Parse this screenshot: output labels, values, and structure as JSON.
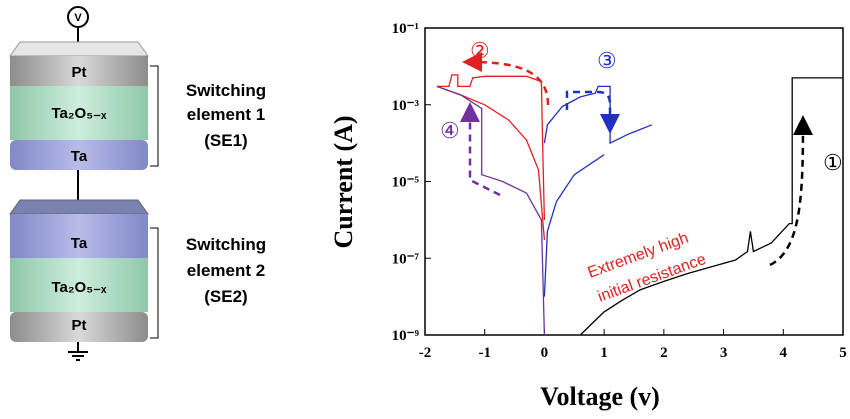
{
  "diagram": {
    "source": "V",
    "element1": {
      "layers": [
        "Pt",
        "Ta₂O₅₋ₓ",
        "Ta"
      ],
      "label": [
        "Switching",
        "element 1",
        "(SE1)"
      ]
    },
    "element2": {
      "layers": [
        "Ta",
        "Ta₂O₅₋ₓ",
        "Pt"
      ],
      "label": [
        "Switching",
        "element 2",
        "(SE2)"
      ]
    }
  },
  "chart_data": {
    "type": "line",
    "log_y": true,
    "xlabel": "Voltage (v)",
    "ylabel": "Current (A)",
    "xlim": [
      -2,
      5
    ],
    "xticks": [
      -2,
      -1,
      0,
      1,
      2,
      3,
      4,
      5
    ],
    "ylim": [
      1e-09,
      0.1
    ],
    "yticks": [
      {
        "value": 1e-09,
        "label": "10⁻⁹"
      },
      {
        "value": 1e-07,
        "label": "10⁻⁷"
      },
      {
        "value": 1e-05,
        "label": "10⁻⁵"
      },
      {
        "value": 0.001,
        "label": "10⁻³"
      },
      {
        "value": 0.1,
        "label": "10⁻¹"
      }
    ],
    "series": [
      {
        "color": "#000000",
        "x": [
          0.6,
          0.8,
          1.0,
          1.3,
          1.6,
          2.0,
          2.4,
          2.8,
          3.2,
          3.4,
          3.45,
          3.5,
          3.8,
          4.1,
          4.15,
          4.15,
          5.0
        ],
        "values": [
          1e-09,
          2e-09,
          4e-09,
          8e-09,
          1.5e-08,
          2.5e-08,
          4e-08,
          6e-08,
          9e-08,
          1.5e-07,
          5e-07,
          1.5e-07,
          2.5e-07,
          8e-07,
          8e-07,
          0.005,
          0.005
        ]
      },
      {
        "color": "#e02020",
        "x": [
          0,
          -0.03,
          -0.05,
          -0.3,
          -1.0,
          -1.2,
          -1.25,
          -1.45,
          -1.45,
          -1.55,
          -1.6,
          -1.8
        ],
        "values": [
          1e-06,
          0.0001,
          0.004,
          0.0055,
          0.0055,
          0.005,
          0.003,
          0.003,
          0.006,
          0.006,
          0.003,
          0.003
        ]
      },
      {
        "color": "#e02020",
        "x": [
          -1.8,
          -1.4,
          -1.0,
          -0.6,
          -0.3,
          -0.1,
          0
        ],
        "values": [
          0.003,
          0.0018,
          0.001,
          0.0004,
          0.00012,
          2e-05,
          3e-07
        ]
      },
      {
        "color": "#2030c0",
        "x": [
          0,
          0.05,
          0.3,
          0.6,
          0.85,
          0.9,
          1.1,
          1.1,
          1.4,
          1.8
        ],
        "values": [
          0.0001,
          0.0003,
          0.0009,
          0.0016,
          0.002,
          0.003,
          0.003,
          0.0001,
          0.00017,
          0.0003
        ]
      },
      {
        "color": "#2030c0",
        "x": [
          0,
          0.05,
          0.2,
          0.5,
          1.0
        ],
        "values": [
          1e-08,
          5e-07,
          3e-06,
          1.5e-05,
          5e-05
        ]
      },
      {
        "color": "#7030a0",
        "x": [
          0,
          -0.05,
          -0.3,
          -0.7,
          -1.05,
          -1.05,
          -1.4,
          -1.8
        ],
        "values": [
          1e-09,
          1e-06,
          5e-06,
          1e-05,
          1.5e-05,
          0.0008,
          0.0018,
          0.003
        ]
      }
    ],
    "annotations": [
      "①",
      "②",
      "③",
      "④",
      "Extremely high",
      "initial resistance"
    ]
  }
}
